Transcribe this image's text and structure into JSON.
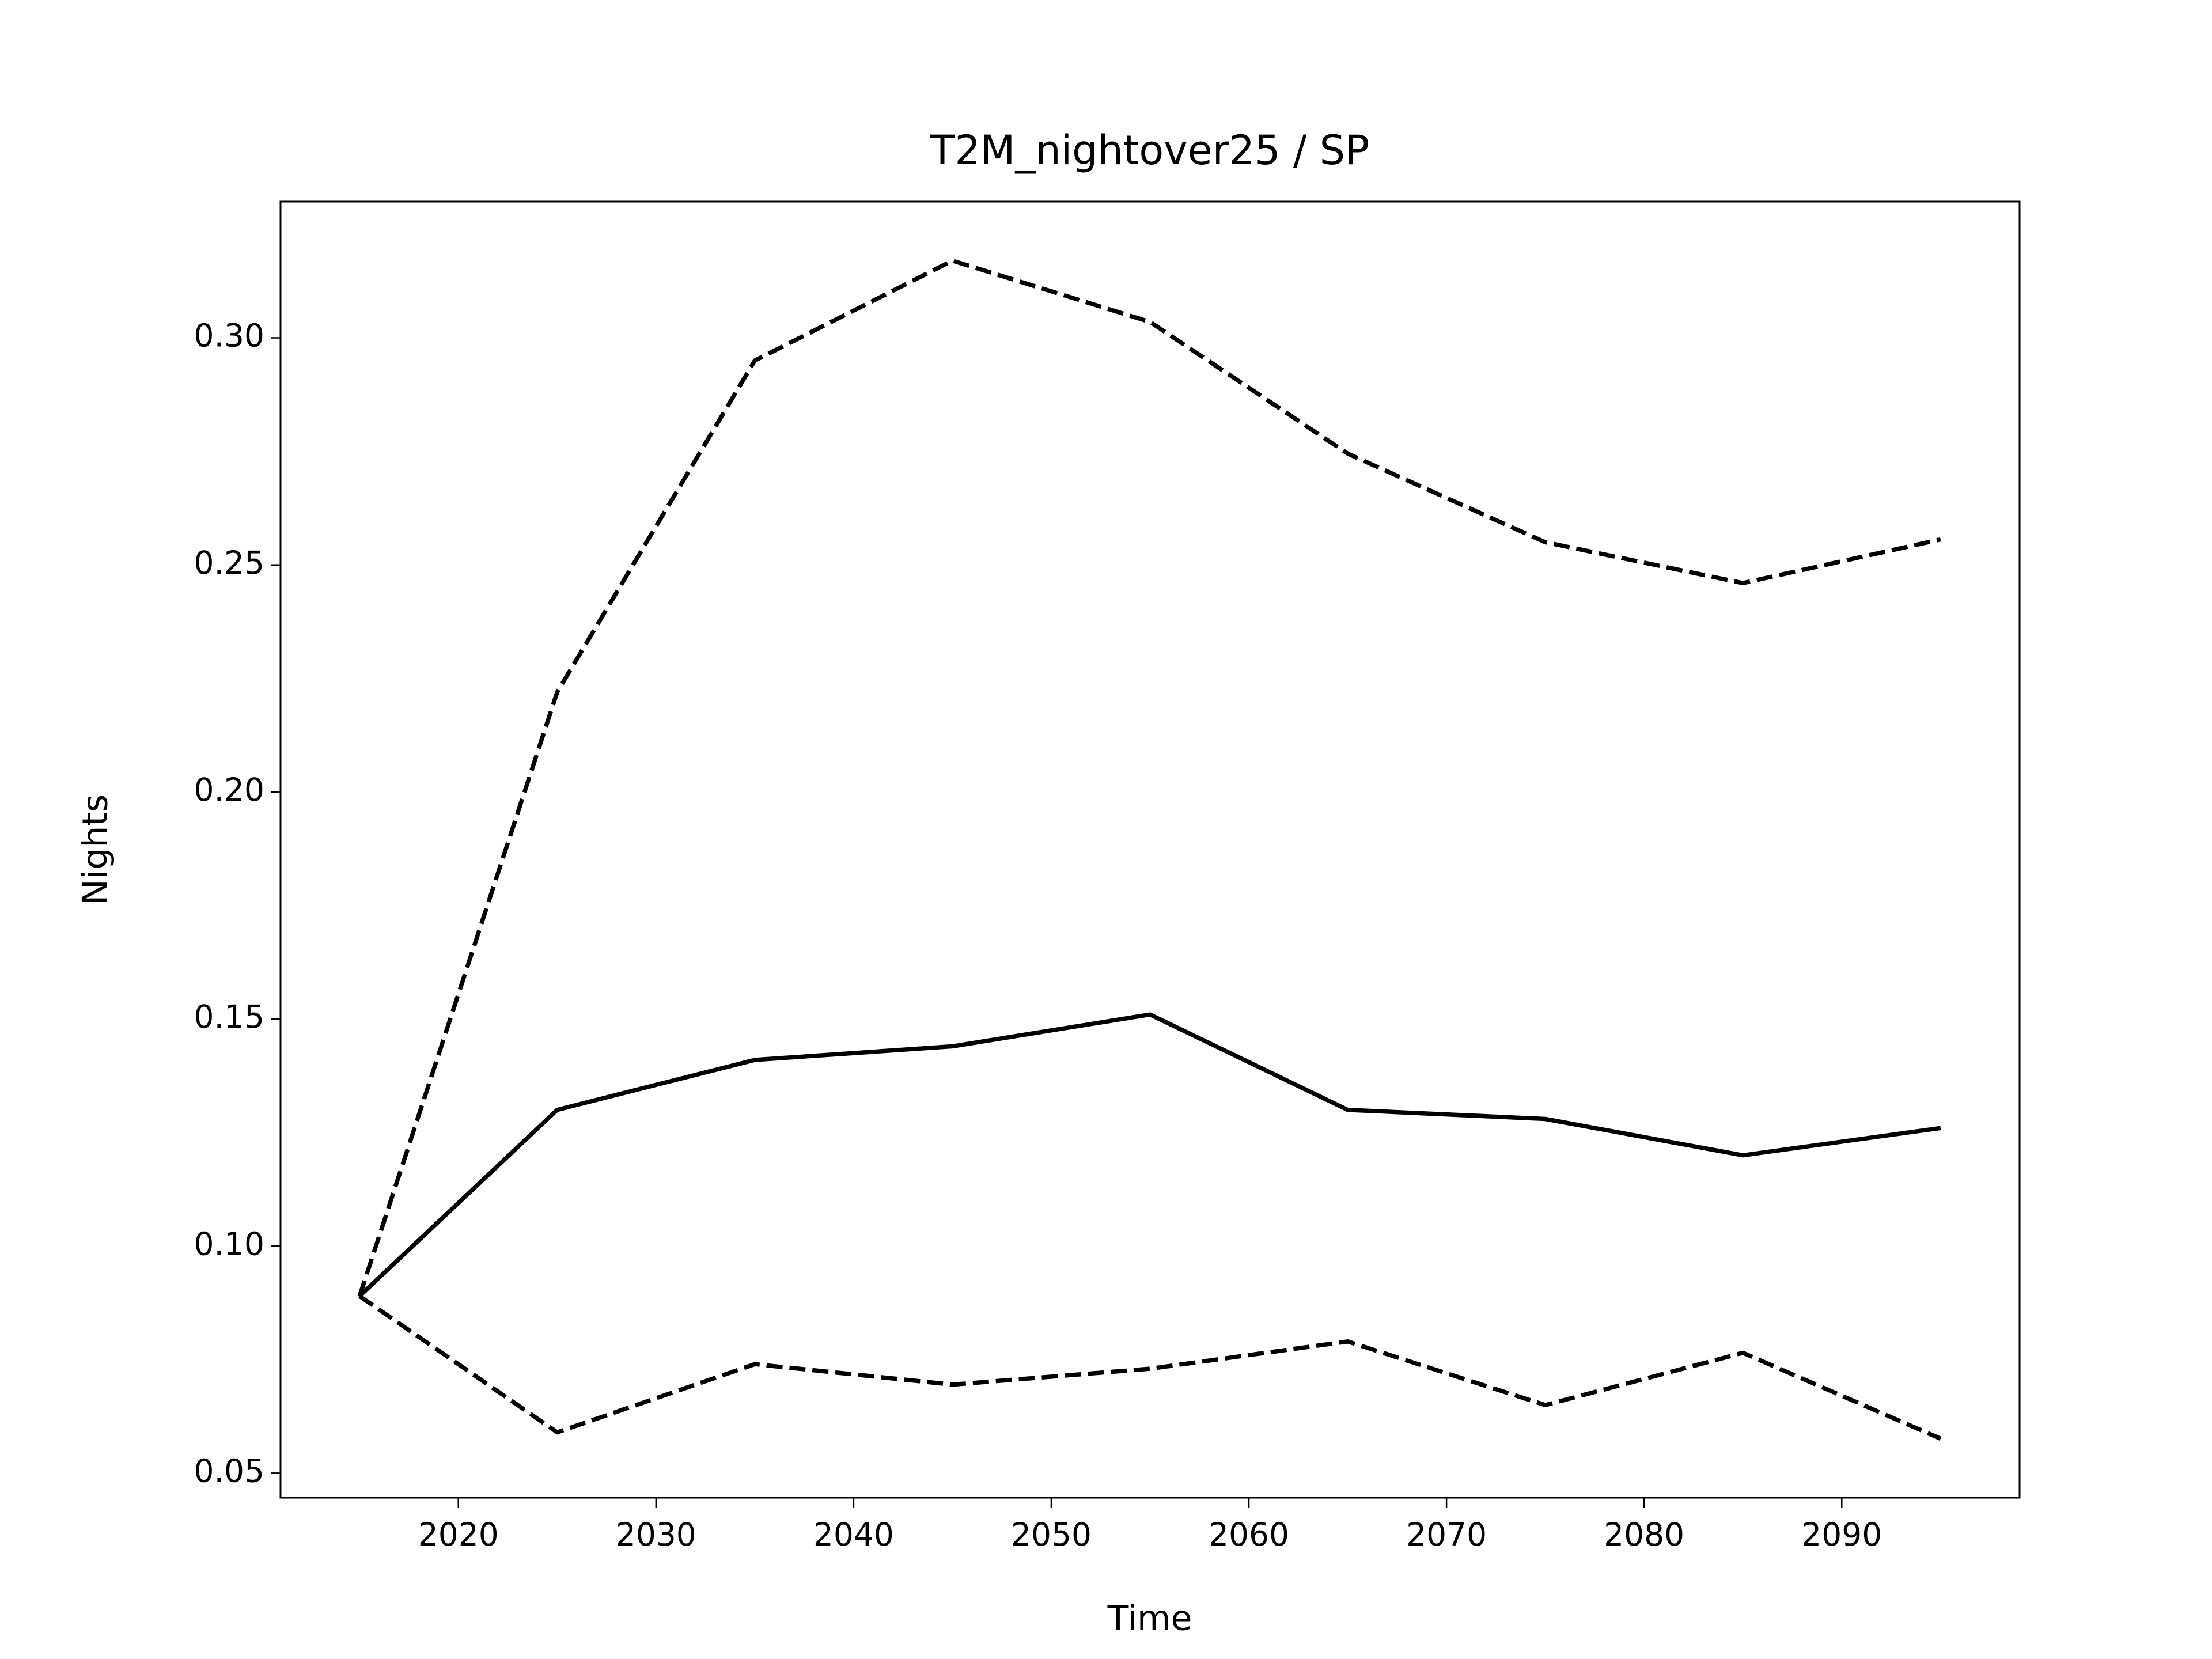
{
  "chart_data": {
    "type": "line",
    "title": "T2M_nightover25 / SP",
    "xlabel": "Time",
    "ylabel": "Nights",
    "x": [
      2015,
      2025,
      2035,
      2045,
      2055,
      2065,
      2075,
      2085,
      2095
    ],
    "series": [
      {
        "color": "#000000",
        "dashed": false,
        "values": [
          0.089,
          0.13,
          0.141,
          0.144,
          0.151,
          0.13,
          0.128,
          0.12,
          0.126
        ]
      },
      {
        "color": "#000000",
        "dashed": true,
        "values": [
          0.089,
          0.222,
          0.295,
          0.317,
          0.3035,
          0.2745,
          0.255,
          0.246,
          0.2556
        ]
      },
      {
        "color": "#000000",
        "dashed": true,
        "values": [
          0.089,
          0.059,
          0.074,
          0.0695,
          0.073,
          0.079,
          0.065,
          0.0765,
          0.0576
        ]
      }
    ],
    "xlim": [
      2011,
      2099
    ],
    "xticks": [
      2020,
      2030,
      2040,
      2050,
      2060,
      2070,
      2080,
      2090
    ],
    "ylim": [
      0.0446,
      0.33
    ],
    "yticks": [
      {
        "value": 0.05,
        "label": "0.05"
      },
      {
        "value": 0.1,
        "label": "0.10"
      },
      {
        "value": 0.15,
        "label": "0.15"
      },
      {
        "value": 0.2,
        "label": "0.20"
      },
      {
        "value": 0.25,
        "label": "0.25"
      },
      {
        "value": 0.3,
        "label": "0.30"
      }
    ],
    "grid": false
  }
}
